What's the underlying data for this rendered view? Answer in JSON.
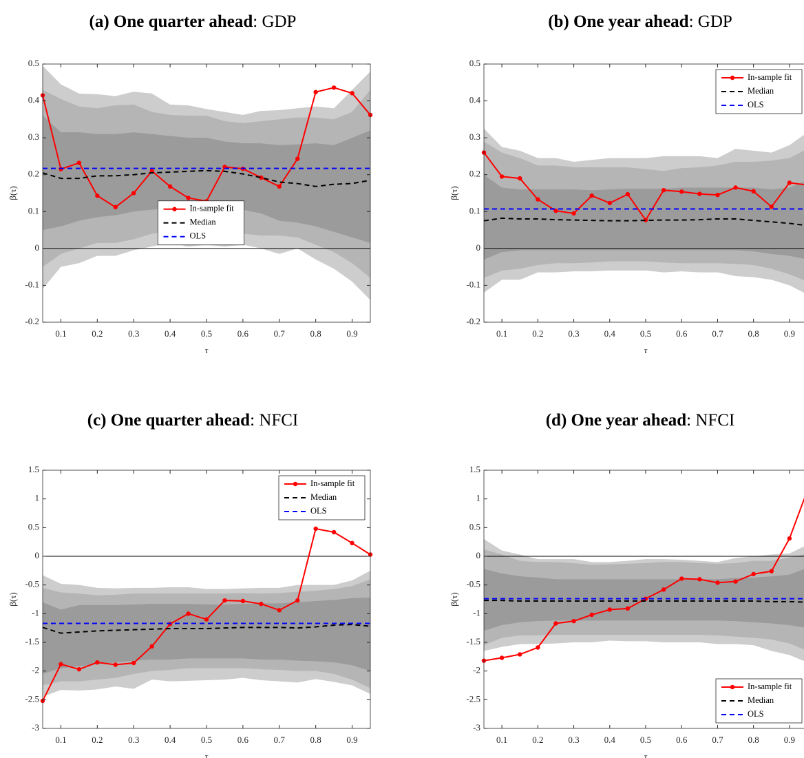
{
  "chart_data": [
    {
      "type": "line",
      "title": [
        "(a) One quarter ahead",
        ": GDP"
      ],
      "xlabel": "τ",
      "ylabel": "β(τ)",
      "x": [
        0.05,
        0.1,
        0.15,
        0.2,
        0.25,
        0.3,
        0.35,
        0.4,
        0.45,
        0.5,
        0.55,
        0.6,
        0.65,
        0.7,
        0.75,
        0.8,
        0.85,
        0.9,
        0.95
      ],
      "xlim": [
        0.05,
        0.95
      ],
      "xticks": [
        0.1,
        0.2,
        0.3,
        0.4,
        0.5,
        0.6,
        0.7,
        0.8,
        0.9
      ],
      "ylim": [
        -0.2,
        0.5
      ],
      "yticks": [
        -0.2,
        -0.1,
        0,
        0.1,
        0.2,
        0.3,
        0.4,
        0.5
      ],
      "reference_line": 0,
      "legend": "lower center",
      "bands": [
        {
          "color": "#cdcdcd",
          "lower": [
            -0.11,
            -0.05,
            -0.04,
            -0.02,
            -0.02,
            -0.005,
            0.005,
            0.015,
            0.005,
            0.01,
            0.005,
            0.01,
            0.0,
            -0.015,
            0.0,
            -0.03,
            -0.055,
            -0.09,
            -0.14
          ],
          "upper": [
            0.495,
            0.445,
            0.42,
            0.418,
            0.413,
            0.425,
            0.42,
            0.39,
            0.388,
            0.378,
            0.37,
            0.362,
            0.373,
            0.375,
            0.38,
            0.385,
            0.38,
            0.43,
            0.48
          ]
        },
        {
          "color": "#b5b5b5",
          "lower": [
            -0.05,
            -0.015,
            0.0,
            0.015,
            0.015,
            0.025,
            0.04,
            0.045,
            0.035,
            0.04,
            0.035,
            0.04,
            0.035,
            0.035,
            0.03,
            0.01,
            -0.01,
            -0.04,
            -0.08
          ],
          "upper": [
            0.43,
            0.405,
            0.385,
            0.38,
            0.388,
            0.39,
            0.37,
            0.362,
            0.36,
            0.36,
            0.345,
            0.34,
            0.345,
            0.35,
            0.355,
            0.355,
            0.35,
            0.37,
            0.43
          ]
        },
        {
          "color": "#9b9b9b",
          "lower": [
            0.05,
            0.06,
            0.075,
            0.085,
            0.09,
            0.1,
            0.105,
            0.11,
            0.11,
            0.11,
            0.1,
            0.105,
            0.095,
            0.075,
            0.07,
            0.06,
            0.045,
            0.03,
            0.015
          ],
          "upper": [
            0.36,
            0.315,
            0.315,
            0.31,
            0.31,
            0.315,
            0.31,
            0.305,
            0.3,
            0.3,
            0.29,
            0.285,
            0.285,
            0.28,
            0.282,
            0.285,
            0.28,
            0.3,
            0.32
          ]
        }
      ],
      "series": [
        {
          "name": "In-sample fit",
          "color": "#ff0000",
          "dashed": false,
          "markers": true,
          "values": [
            0.415,
            0.215,
            0.232,
            0.143,
            0.112,
            0.15,
            0.21,
            0.168,
            0.137,
            0.128,
            0.221,
            0.216,
            0.192,
            0.168,
            0.243,
            0.424,
            0.436,
            0.421,
            0.362
          ]
        },
        {
          "name": "Median",
          "color": "#000000",
          "dashed": true,
          "markers": false,
          "values": [
            0.205,
            0.19,
            0.19,
            0.197,
            0.197,
            0.2,
            0.205,
            0.207,
            0.209,
            0.211,
            0.209,
            0.202,
            0.192,
            0.18,
            0.176,
            0.168,
            0.174,
            0.176,
            0.185
          ]
        },
        {
          "name": "OLS",
          "color": "#0000ff",
          "dashed": true,
          "markers": false,
          "value": 0.217
        }
      ]
    },
    {
      "type": "line",
      "title": [
        "(b) One year ahead",
        ": GDP"
      ],
      "xlabel": "τ",
      "ylabel": "β(τ)",
      "x": [
        0.05,
        0.1,
        0.15,
        0.2,
        0.25,
        0.3,
        0.35,
        0.4,
        0.45,
        0.5,
        0.55,
        0.6,
        0.65,
        0.7,
        0.75,
        0.8,
        0.85,
        0.9,
        0.95
      ],
      "xlim": [
        0.05,
        0.95
      ],
      "xticks": [
        0.1,
        0.2,
        0.3,
        0.4,
        0.5,
        0.6,
        0.7,
        0.8,
        0.9
      ],
      "ylim": [
        -0.2,
        0.5
      ],
      "yticks": [
        -0.2,
        -0.1,
        0,
        0.1,
        0.2,
        0.3,
        0.4,
        0.5
      ],
      "reference_line": 0,
      "legend": "upper right",
      "bands": [
        {
          "color": "#cdcdcd",
          "lower": [
            -0.12,
            -0.085,
            -0.085,
            -0.065,
            -0.065,
            -0.062,
            -0.062,
            -0.06,
            -0.06,
            -0.06,
            -0.065,
            -0.062,
            -0.065,
            -0.065,
            -0.075,
            -0.078,
            -0.085,
            -0.1,
            -0.125
          ],
          "upper": [
            0.325,
            0.275,
            0.265,
            0.245,
            0.245,
            0.235,
            0.24,
            0.245,
            0.245,
            0.245,
            0.25,
            0.25,
            0.25,
            0.245,
            0.27,
            0.265,
            0.26,
            0.28,
            0.315
          ]
        },
        {
          "color": "#b5b5b5",
          "lower": [
            -0.08,
            -0.06,
            -0.055,
            -0.045,
            -0.04,
            -0.04,
            -0.038,
            -0.035,
            -0.035,
            -0.035,
            -0.038,
            -0.04,
            -0.04,
            -0.04,
            -0.042,
            -0.045,
            -0.055,
            -0.07,
            -0.09
          ],
          "upper": [
            0.29,
            0.26,
            0.245,
            0.225,
            0.225,
            0.22,
            0.22,
            0.22,
            0.22,
            0.215,
            0.21,
            0.218,
            0.22,
            0.225,
            0.235,
            0.235,
            0.238,
            0.245,
            0.27
          ]
        },
        {
          "color": "#9b9b9b",
          "lower": [
            -0.03,
            -0.01,
            -0.005,
            -0.005,
            -0.005,
            -0.005,
            -0.005,
            -0.005,
            -0.005,
            -0.005,
            -0.005,
            -0.005,
            -0.005,
            -0.005,
            -0.005,
            -0.008,
            -0.015,
            -0.02,
            -0.03
          ],
          "upper": [
            0.2,
            0.165,
            0.16,
            0.16,
            0.16,
            0.16,
            0.158,
            0.16,
            0.162,
            0.162,
            0.162,
            0.165,
            0.165,
            0.165,
            0.165,
            0.165,
            0.16,
            0.165,
            0.185
          ]
        }
      ],
      "series": [
        {
          "name": "In-sample fit",
          "color": "#ff0000",
          "dashed": false,
          "markers": true,
          "values": [
            0.26,
            0.195,
            0.19,
            0.133,
            0.102,
            0.095,
            0.143,
            0.123,
            0.147,
            0.077,
            0.158,
            0.154,
            0.148,
            0.145,
            0.165,
            0.155,
            0.113,
            0.178,
            0.172
          ]
        },
        {
          "name": "Median",
          "color": "#000000",
          "dashed": true,
          "markers": false,
          "values": [
            0.075,
            0.082,
            0.08,
            0.08,
            0.078,
            0.077,
            0.076,
            0.075,
            0.075,
            0.076,
            0.077,
            0.077,
            0.078,
            0.08,
            0.08,
            0.076,
            0.072,
            0.068,
            0.062
          ]
        },
        {
          "name": "OLS",
          "color": "#0000ff",
          "dashed": true,
          "markers": false,
          "value": 0.107
        }
      ]
    },
    {
      "type": "line",
      "title": [
        "(c) One quarter ahead",
        ": NFCI"
      ],
      "xlabel": "τ",
      "ylabel": "β(τ)",
      "x": [
        0.05,
        0.1,
        0.15,
        0.2,
        0.25,
        0.3,
        0.35,
        0.4,
        0.45,
        0.5,
        0.55,
        0.6,
        0.65,
        0.7,
        0.75,
        0.8,
        0.85,
        0.9,
        0.95
      ],
      "xlim": [
        0.05,
        0.95
      ],
      "xticks": [
        0.1,
        0.2,
        0.3,
        0.4,
        0.5,
        0.6,
        0.7,
        0.8,
        0.9
      ],
      "ylim": [
        -3,
        1.5
      ],
      "yticks": [
        -3,
        -2.5,
        -2,
        -1.5,
        -1,
        -0.5,
        0,
        0.5,
        1,
        1.5
      ],
      "reference_line": 0,
      "legend": "upper right",
      "bands": [
        {
          "color": "#cdcdcd",
          "lower": [
            -2.45,
            -2.33,
            -2.34,
            -2.32,
            -2.27,
            -2.31,
            -2.15,
            -2.18,
            -2.17,
            -2.16,
            -2.15,
            -2.12,
            -2.16,
            -2.18,
            -2.2,
            -2.14,
            -2.19,
            -2.25,
            -2.4
          ],
          "upper": [
            -0.33,
            -0.48,
            -0.5,
            -0.55,
            -0.56,
            -0.55,
            -0.55,
            -0.54,
            -0.54,
            -0.57,
            -0.57,
            -0.56,
            -0.55,
            -0.55,
            -0.5,
            -0.5,
            -0.5,
            -0.42,
            -0.25
          ]
        },
        {
          "color": "#b5b5b5",
          "lower": [
            -2.25,
            -2.18,
            -2.18,
            -2.15,
            -2.12,
            -2.05,
            -2.0,
            -1.98,
            -1.95,
            -1.95,
            -1.95,
            -1.95,
            -1.97,
            -1.98,
            -2.0,
            -2.0,
            -2.05,
            -2.15,
            -2.3
          ],
          "upper": [
            -0.55,
            -0.63,
            -0.65,
            -0.68,
            -0.67,
            -0.65,
            -0.65,
            -0.65,
            -0.65,
            -0.65,
            -0.65,
            -0.64,
            -0.65,
            -0.64,
            -0.62,
            -0.6,
            -0.57,
            -0.52,
            -0.4
          ]
        },
        {
          "color": "#9b9b9b",
          "lower": [
            -2.05,
            -1.95,
            -1.92,
            -1.88,
            -1.85,
            -1.82,
            -1.8,
            -1.8,
            -1.78,
            -1.78,
            -1.78,
            -1.78,
            -1.8,
            -1.8,
            -1.82,
            -1.83,
            -1.85,
            -1.9,
            -2.0
          ],
          "upper": [
            -0.8,
            -0.93,
            -0.85,
            -0.85,
            -0.85,
            -0.84,
            -0.83,
            -0.83,
            -0.83,
            -0.84,
            -0.84,
            -0.83,
            -0.82,
            -0.82,
            -0.8,
            -0.78,
            -0.76,
            -0.73,
            -0.72
          ]
        }
      ],
      "series": [
        {
          "name": "In-sample fit",
          "color": "#ff0000",
          "dashed": false,
          "markers": true,
          "values": [
            -2.52,
            -1.88,
            -1.97,
            -1.85,
            -1.89,
            -1.86,
            -1.57,
            -1.18,
            -1.0,
            -1.1,
            -0.77,
            -0.78,
            -0.83,
            -0.94,
            -0.77,
            0.48,
            0.42,
            0.23,
            0.03
          ]
        },
        {
          "name": "Median",
          "color": "#000000",
          "dashed": true,
          "markers": false,
          "values": [
            -1.24,
            -1.34,
            -1.32,
            -1.3,
            -1.29,
            -1.28,
            -1.27,
            -1.26,
            -1.26,
            -1.26,
            -1.25,
            -1.24,
            -1.24,
            -1.24,
            -1.25,
            -1.23,
            -1.2,
            -1.19,
            -1.22
          ]
        },
        {
          "name": "OLS",
          "color": "#0000ff",
          "dashed": true,
          "markers": false,
          "value": -1.17
        }
      ]
    },
    {
      "type": "line",
      "title": [
        "(d) One year ahead",
        ": NFCI"
      ],
      "xlabel": "τ",
      "ylabel": "β(τ)",
      "x": [
        0.05,
        0.1,
        0.15,
        0.2,
        0.25,
        0.3,
        0.35,
        0.4,
        0.45,
        0.5,
        0.55,
        0.6,
        0.65,
        0.7,
        0.75,
        0.8,
        0.85,
        0.9,
        0.95
      ],
      "xlim": [
        0.05,
        0.95
      ],
      "xticks": [
        0.1,
        0.2,
        0.3,
        0.4,
        0.5,
        0.6,
        0.7,
        0.8,
        0.9
      ],
      "ylim": [
        -3,
        1.5
      ],
      "yticks": [
        -3,
        -2.5,
        -2,
        -1.5,
        -1,
        -0.5,
        0,
        0.5,
        1,
        1.5
      ],
      "reference_line": 0,
      "legend": "lower right",
      "bands": [
        {
          "color": "#cdcdcd",
          "lower": [
            -1.65,
            -1.58,
            -1.53,
            -1.53,
            -1.52,
            -1.5,
            -1.5,
            -1.47,
            -1.48,
            -1.48,
            -1.5,
            -1.5,
            -1.5,
            -1.53,
            -1.53,
            -1.55,
            -1.65,
            -1.72,
            -1.85
          ],
          "upper": [
            0.3,
            0.1,
            0.03,
            -0.05,
            -0.05,
            -0.05,
            -0.1,
            -0.1,
            -0.08,
            -0.05,
            -0.05,
            -0.06,
            -0.08,
            -0.1,
            -0.03,
            0.0,
            0.03,
            0.05,
            0.2
          ]
        },
        {
          "color": "#b5b5b5",
          "lower": [
            -1.55,
            -1.42,
            -1.38,
            -1.38,
            -1.37,
            -1.37,
            -1.37,
            -1.37,
            -1.37,
            -1.37,
            -1.37,
            -1.37,
            -1.37,
            -1.38,
            -1.4,
            -1.42,
            -1.45,
            -1.52,
            -1.65
          ],
          "upper": [
            0.12,
            0.03,
            -0.08,
            -0.1,
            -0.1,
            -0.12,
            -0.15,
            -0.14,
            -0.13,
            -0.12,
            -0.1,
            -0.1,
            -0.12,
            -0.13,
            -0.12,
            -0.08,
            -0.08,
            -0.02,
            0.05
          ]
        },
        {
          "color": "#9b9b9b",
          "lower": [
            -1.3,
            -1.2,
            -1.15,
            -1.13,
            -1.12,
            -1.12,
            -1.12,
            -1.12,
            -1.12,
            -1.12,
            -1.12,
            -1.12,
            -1.12,
            -1.12,
            -1.13,
            -1.15,
            -1.17,
            -1.2,
            -1.25
          ],
          "upper": [
            -0.22,
            -0.3,
            -0.35,
            -0.37,
            -0.4,
            -0.4,
            -0.4,
            -0.4,
            -0.4,
            -0.4,
            -0.4,
            -0.4,
            -0.4,
            -0.4,
            -0.38,
            -0.37,
            -0.35,
            -0.32,
            -0.2
          ]
        }
      ],
      "series": [
        {
          "name": "In-sample fit",
          "color": "#ff0000",
          "dashed": false,
          "markers": true,
          "values": [
            -1.82,
            -1.77,
            -1.71,
            -1.59,
            -1.17,
            -1.13,
            -1.02,
            -0.93,
            -0.91,
            -0.74,
            -0.58,
            -0.39,
            -0.4,
            -0.46,
            -0.44,
            -0.31,
            -0.26,
            0.31,
            1.15
          ]
        },
        {
          "name": "Median",
          "color": "#000000",
          "dashed": true,
          "markers": false,
          "values": [
            -0.77,
            -0.77,
            -0.78,
            -0.78,
            -0.78,
            -0.78,
            -0.78,
            -0.78,
            -0.78,
            -0.78,
            -0.78,
            -0.78,
            -0.78,
            -0.78,
            -0.78,
            -0.78,
            -0.79,
            -0.79,
            -0.8
          ]
        },
        {
          "name": "OLS",
          "color": "#0000ff",
          "dashed": true,
          "markers": false,
          "value": -0.74
        }
      ]
    }
  ]
}
